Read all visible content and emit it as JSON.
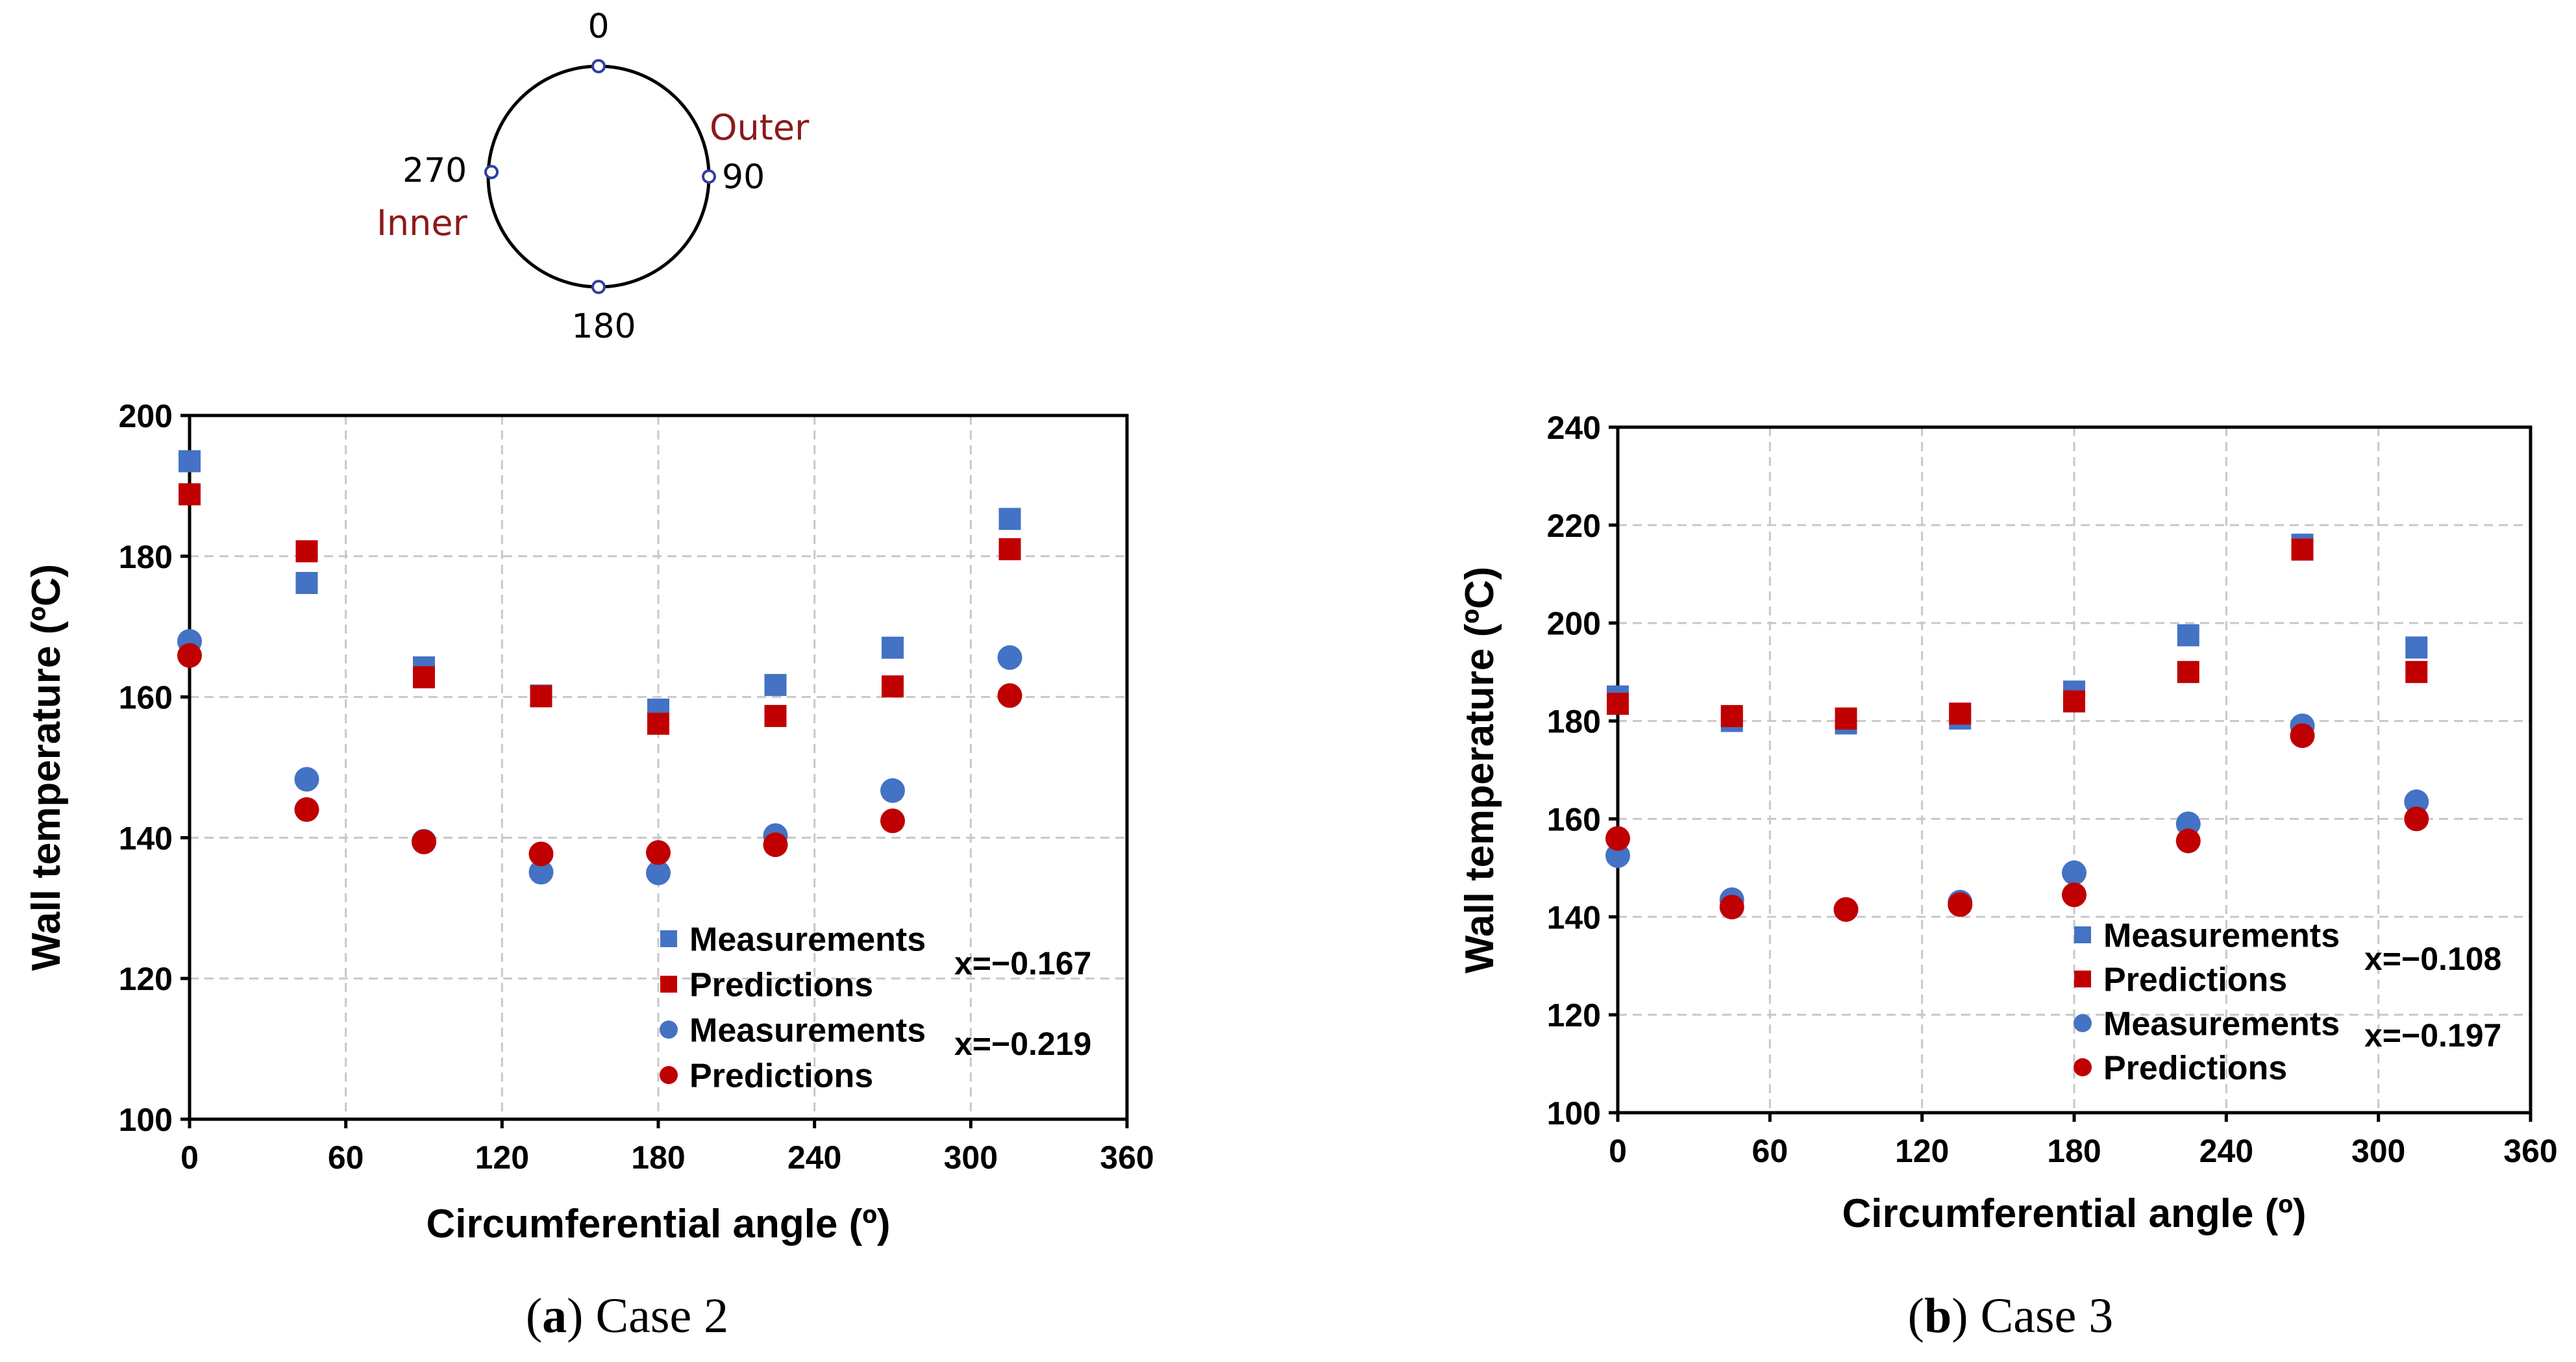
{
  "diagram": {
    "label_0": "0",
    "label_90": "90",
    "label_180": "180",
    "label_270": "270",
    "label_outer": "Outer",
    "label_inner": "Inner",
    "colors": {
      "outline": "#000000",
      "marker": "#2f3fa0",
      "accent": "#8b1a1a"
    }
  },
  "chart_data": [
    {
      "type": "scatter",
      "caption_letter": "a",
      "caption_text": " Case 2",
      "xlabel": "Circumferential angle (º)",
      "ylabel": "Wall temperature (ºC)",
      "xlim": [
        0,
        360
      ],
      "ylim": [
        100,
        200
      ],
      "xticks": [
        "0",
        "60",
        "120",
        "180",
        "240",
        "300",
        "360"
      ],
      "yticks": [
        "100",
        "120",
        "140",
        "160",
        "180",
        "200"
      ],
      "grid": true,
      "legend_position": "bottom-right",
      "annotations": [
        "x=−0.167",
        "x=−0.219"
      ],
      "series": [
        {
          "name": "Measurements",
          "marker": "square",
          "color": "#4472c4",
          "group": 1,
          "x": [
            0,
            45,
            90,
            135,
            180,
            225,
            270,
            315
          ],
          "y": [
            193.5,
            176.2,
            164.2,
            160.2,
            158.2,
            161.7,
            167.0,
            185.3
          ]
        },
        {
          "name": "Predictions",
          "marker": "square",
          "color": "#c00000",
          "group": 1,
          "x": [
            0,
            45,
            90,
            135,
            180,
            225,
            270,
            315
          ],
          "y": [
            188.8,
            180.7,
            162.8,
            160.1,
            156.2,
            157.3,
            161.5,
            181.0
          ]
        },
        {
          "name": "Measurements",
          "marker": "circle",
          "color": "#4472c4",
          "group": 2,
          "x": [
            0,
            45,
            90,
            135,
            180,
            225,
            270,
            315
          ],
          "y": [
            167.9,
            148.3,
            139.5,
            135.1,
            135.0,
            140.3,
            146.7,
            165.6
          ]
        },
        {
          "name": "Predictions",
          "marker": "circle",
          "color": "#c00000",
          "group": 2,
          "x": [
            0,
            45,
            90,
            135,
            180,
            225,
            270,
            315
          ],
          "y": [
            165.9,
            144.0,
            139.4,
            137.7,
            137.9,
            139.0,
            142.4,
            160.2
          ]
        }
      ]
    },
    {
      "type": "scatter",
      "caption_letter": "b",
      "caption_text": " Case 3",
      "xlabel": "Circumferential angle (º)",
      "ylabel": "Wall temperature (ºC)",
      "xlim": [
        0,
        360
      ],
      "ylim": [
        100,
        240
      ],
      "xticks": [
        "0",
        "60",
        "120",
        "180",
        "240",
        "300",
        "360"
      ],
      "yticks": [
        "100",
        "120",
        "140",
        "160",
        "180",
        "200",
        "220",
        "240"
      ],
      "grid": true,
      "legend_position": "bottom-right",
      "annotations": [
        "x=−0.108",
        "x=−0.197"
      ],
      "series": [
        {
          "name": "Measurements",
          "marker": "square",
          "color": "#4472c4",
          "group": 1,
          "x": [
            0,
            45,
            90,
            135,
            180,
            225,
            270,
            315
          ],
          "y": [
            185.0,
            180.0,
            179.5,
            180.5,
            186.0,
            197.5,
            216.0,
            195.0
          ]
        },
        {
          "name": "Predictions",
          "marker": "square",
          "color": "#c00000",
          "group": 1,
          "x": [
            0,
            45,
            90,
            135,
            180,
            225,
            270,
            315
          ],
          "y": [
            183.5,
            181.0,
            180.5,
            181.5,
            184.0,
            190.0,
            215.0,
            190.0
          ]
        },
        {
          "name": "Measurements",
          "marker": "circle",
          "color": "#4472c4",
          "group": 2,
          "x": [
            0,
            45,
            90,
            135,
            180,
            225,
            270,
            315
          ],
          "y": [
            152.5,
            143.5,
            141.5,
            143.0,
            149.0,
            159.0,
            179.0,
            163.5
          ]
        },
        {
          "name": "Predictions",
          "marker": "circle",
          "color": "#c00000",
          "group": 2,
          "x": [
            0,
            45,
            90,
            135,
            180,
            225,
            270,
            315
          ],
          "y": [
            156.0,
            142.0,
            141.5,
            142.5,
            144.5,
            155.5,
            177.0,
            160.0
          ]
        }
      ]
    }
  ]
}
